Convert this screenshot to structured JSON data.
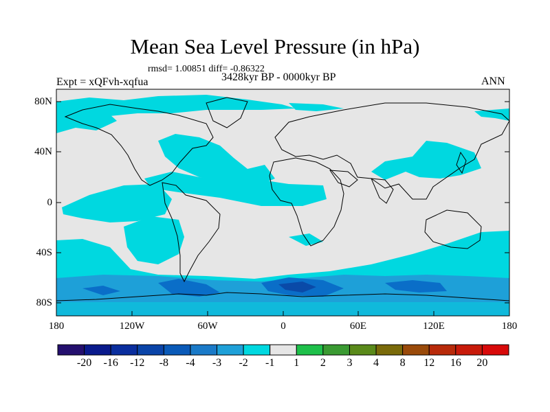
{
  "title": "Mean Sea Level Pressure (in hPa)",
  "stats_line": "rmsd= 1.00851 diff= -0.86322",
  "left_label": "Expt = xQFvh-xqfua",
  "center_label": "3428kyr BP - 0000kyr BP",
  "right_label": "ANN",
  "map": {
    "land_mask_color": "#e6e6e6",
    "anomaly_color_minus_1_to_minus_2": "#00d8e0",
    "anomaly_color_minus_2_to_minus_3": "#1ea0d8",
    "anomaly_color_minus_3_to_minus_4": "#0a6ec8",
    "anomaly_color_minus_4_to_minus_8": "#0a4aa8",
    "coastline_color": "#000000"
  },
  "lat_labels": [
    "80N",
    "40N",
    "0",
    "40S",
    "80S"
  ],
  "lon_labels": [
    "180",
    "120W",
    "60W",
    "0",
    "60E",
    "120E",
    "180"
  ],
  "colorbar": {
    "labels": [
      "-20",
      "-16",
      "-12",
      "-8",
      "-4",
      "-3",
      "-2",
      "-1",
      "1",
      "2",
      "3",
      "4",
      "8",
      "12",
      "16",
      "20"
    ],
    "colors": [
      "#240f6e",
      "#0a1a8c",
      "#0a2e9e",
      "#0a44a8",
      "#0a5ab8",
      "#1a7ac8",
      "#1ea0d8",
      "#00d8e0",
      "#e6e6e6",
      "#1ec04a",
      "#3a9a32",
      "#5a8a1a",
      "#7a6a0a",
      "#9a4a0a",
      "#b82a0a",
      "#c81a0a",
      "#d80a0a"
    ]
  }
}
